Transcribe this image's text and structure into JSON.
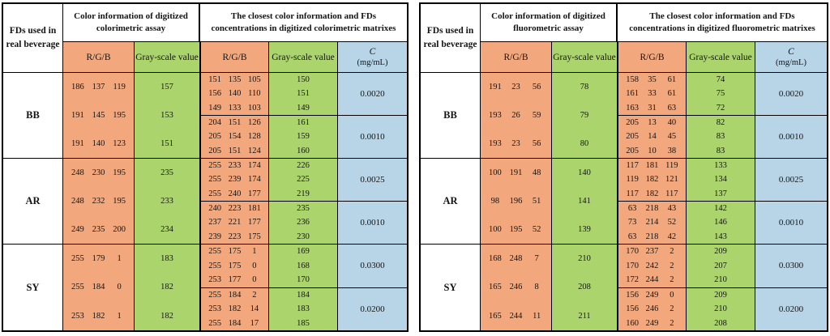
{
  "figure": {
    "colors": {
      "rgb_column_bg": "#F2A77C",
      "gray_column_bg": "#ABD56C",
      "concentration_column_bg": "#B8D5E8",
      "border": "#000000",
      "text": "#141414"
    },
    "tables": [
      {
        "name": "colorimetric",
        "fd_col_header": "FDs used in real beverage",
        "assay_header": "Color information of digitized colorimetric assay",
        "matrix_header": "The closest color information and FDs concentrations in digitized colorimetric matrixes",
        "rgb_label": "R/G/B",
        "gray_label": "Gray-scale value",
        "c_label": "C",
        "c_unit": "(mg/mL)",
        "groups": [
          {
            "fd": "BB",
            "assay": [
              {
                "rgb": [
                  186,
                  137,
                  119
                ],
                "gray": 157
              },
              {
                "rgb": [
                  191,
                  145,
                  195
                ],
                "gray": 153
              },
              {
                "rgb": [
                  191,
                  140,
                  123
                ],
                "gray": 151
              }
            ],
            "matrix": [
              {
                "rows": [
                  {
                    "rgb": [
                      151,
                      135,
                      105
                    ],
                    "gray": 150
                  },
                  {
                    "rgb": [
                      156,
                      140,
                      110
                    ],
                    "gray": 151
                  },
                  {
                    "rgb": [
                      149,
                      133,
                      103
                    ],
                    "gray": 149
                  }
                ],
                "c": "0.0020"
              },
              {
                "rows": [
                  {
                    "rgb": [
                      204,
                      151,
                      126
                    ],
                    "gray": 161
                  },
                  {
                    "rgb": [
                      205,
                      154,
                      128
                    ],
                    "gray": 159
                  },
                  {
                    "rgb": [
                      205,
                      151,
                      124
                    ],
                    "gray": 160
                  }
                ],
                "c": "0.0010"
              }
            ]
          },
          {
            "fd": "AR",
            "assay": [
              {
                "rgb": [
                  248,
                  230,
                  195
                ],
                "gray": 235
              },
              {
                "rgb": [
                  248,
                  232,
                  195
                ],
                "gray": 233
              },
              {
                "rgb": [
                  249,
                  235,
                  200
                ],
                "gray": 234
              }
            ],
            "matrix": [
              {
                "rows": [
                  {
                    "rgb": [
                      255,
                      233,
                      174
                    ],
                    "gray": 226
                  },
                  {
                    "rgb": [
                      255,
                      239,
                      174
                    ],
                    "gray": 225
                  },
                  {
                    "rgb": [
                      255,
                      240,
                      177
                    ],
                    "gray": 219
                  }
                ],
                "c": "0.0025"
              },
              {
                "rows": [
                  {
                    "rgb": [
                      240,
                      223,
                      181
                    ],
                    "gray": 235
                  },
                  {
                    "rgb": [
                      237,
                      221,
                      177
                    ],
                    "gray": 236
                  },
                  {
                    "rgb": [
                      239,
                      223,
                      175
                    ],
                    "gray": 230
                  }
                ],
                "c": "0.0010"
              }
            ]
          },
          {
            "fd": "SY",
            "assay": [
              {
                "rgb": [
                  255,
                  179,
                  1
                ],
                "gray": 183
              },
              {
                "rgb": [
                  255,
                  184,
                  0
                ],
                "gray": 182
              },
              {
                "rgb": [
                  253,
                  182,
                  1
                ],
                "gray": 182
              }
            ],
            "matrix": [
              {
                "rows": [
                  {
                    "rgb": [
                      255,
                      175,
                      1
                    ],
                    "gray": 169
                  },
                  {
                    "rgb": [
                      255,
                      175,
                      0
                    ],
                    "gray": 168
                  },
                  {
                    "rgb": [
                      253,
                      177,
                      0
                    ],
                    "gray": 170
                  }
                ],
                "c": "0.0300"
              },
              {
                "rows": [
                  {
                    "rgb": [
                      255,
                      184,
                      2
                    ],
                    "gray": 184
                  },
                  {
                    "rgb": [
                      253,
                      182,
                      14
                    ],
                    "gray": 183
                  },
                  {
                    "rgb": [
                      255,
                      184,
                      17
                    ],
                    "gray": 185
                  }
                ],
                "c": "0.0200"
              }
            ]
          }
        ]
      },
      {
        "name": "fluorometric",
        "fd_col_header": "FDs used in real beverage",
        "assay_header": "Color information of digitized fluorometric assay",
        "matrix_header": "The closest color information and FDs concentrations in digitized fluorometric matrixes",
        "rgb_label": "R/G/B",
        "gray_label": "Gray-scale value",
        "c_label": "C",
        "c_unit": "(mg/mL)",
        "groups": [
          {
            "fd": "BB",
            "assay": [
              {
                "rgb": [
                  191,
                  23,
                  56
                ],
                "gray": 78
              },
              {
                "rgb": [
                  193,
                  26,
                  59
                ],
                "gray": 79
              },
              {
                "rgb": [
                  193,
                  23,
                  56
                ],
                "gray": 80
              }
            ],
            "matrix": [
              {
                "rows": [
                  {
                    "rgb": [
                      158,
                      35,
                      61
                    ],
                    "gray": 74
                  },
                  {
                    "rgb": [
                      161,
                      33,
                      61
                    ],
                    "gray": 75
                  },
                  {
                    "rgb": [
                      163,
                      31,
                      63
                    ],
                    "gray": 72
                  }
                ],
                "c": "0.0020"
              },
              {
                "rows": [
                  {
                    "rgb": [
                      205,
                      13,
                      40
                    ],
                    "gray": 82
                  },
                  {
                    "rgb": [
                      205,
                      14,
                      45
                    ],
                    "gray": 83
                  },
                  {
                    "rgb": [
                      205,
                      10,
                      38
                    ],
                    "gray": 83
                  }
                ],
                "c": "0.0010"
              }
            ]
          },
          {
            "fd": "AR",
            "assay": [
              {
                "rgb": [
                  100,
                  191,
                  48
                ],
                "gray": 140
              },
              {
                "rgb": [
                  98,
                  196,
                  51
                ],
                "gray": 141
              },
              {
                "rgb": [
                  100,
                  195,
                  52
                ],
                "gray": 139
              }
            ],
            "matrix": [
              {
                "rows": [
                  {
                    "rgb": [
                      117,
                      181,
                      119
                    ],
                    "gray": 133
                  },
                  {
                    "rgb": [
                      119,
                      182,
                      121
                    ],
                    "gray": 134
                  },
                  {
                    "rgb": [
                      117,
                      182,
                      117
                    ],
                    "gray": 137
                  }
                ],
                "c": "0.0025"
              },
              {
                "rows": [
                  {
                    "rgb": [
                      63,
                      218,
                      43
                    ],
                    "gray": 142
                  },
                  {
                    "rgb": [
                      73,
                      214,
                      52
                    ],
                    "gray": 146
                  },
                  {
                    "rgb": [
                      63,
                      218,
                      42
                    ],
                    "gray": 143
                  }
                ],
                "c": "0.0010"
              }
            ]
          },
          {
            "fd": "SY",
            "assay": [
              {
                "rgb": [
                  168,
                  248,
                  7
                ],
                "gray": 210
              },
              {
                "rgb": [
                  165,
                  246,
                  8
                ],
                "gray": 208
              },
              {
                "rgb": [
                  165,
                  244,
                  11
                ],
                "gray": 211
              }
            ],
            "matrix": [
              {
                "rows": [
                  {
                    "rgb": [
                      170,
                      237,
                      2
                    ],
                    "gray": 209
                  },
                  {
                    "rgb": [
                      170,
                      242,
                      2
                    ],
                    "gray": 207
                  },
                  {
                    "rgb": [
                      172,
                      244,
                      2
                    ],
                    "gray": 210
                  }
                ],
                "c": "0.0300"
              },
              {
                "rows": [
                  {
                    "rgb": [
                      156,
                      249,
                      0
                    ],
                    "gray": 209
                  },
                  {
                    "rgb": [
                      156,
                      246,
                      2
                    ],
                    "gray": 210
                  },
                  {
                    "rgb": [
                      160,
                      249,
                      2
                    ],
                    "gray": 208
                  }
                ],
                "c": "0.0200"
              }
            ]
          }
        ]
      }
    ]
  }
}
